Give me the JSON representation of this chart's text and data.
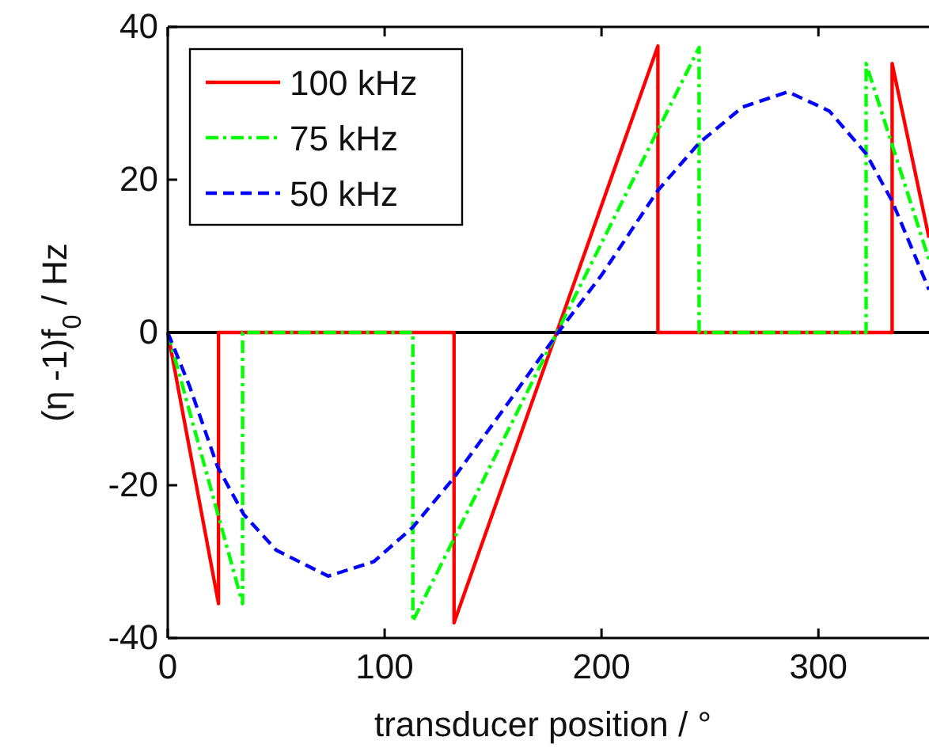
{
  "chart_data": {
    "type": "line",
    "xlabel": "transducer position / °",
    "ylabel": "(η -1)f$_{0}$ / Hz",
    "xlim": [
      0,
      351
    ],
    "xticks": [
      0,
      100,
      200,
      300
    ],
    "ylim": [
      -40,
      40
    ],
    "yticks": [
      -40,
      -20,
      0,
      20,
      40
    ],
    "grid": false,
    "legend": "top left",
    "ref_lines": [
      {
        "axis": "y",
        "value": 0,
        "color": "#000000"
      }
    ],
    "series": [
      {
        "name": "100 kHz",
        "color": "#ff0000",
        "line_style": "solid",
        "x": [
          0,
          23.4,
          23.4,
          132,
          132,
          226,
          226,
          334,
          334,
          351
        ],
        "values": [
          0,
          -35.5,
          0,
          0,
          -38,
          37.5,
          0,
          0,
          35.2,
          12.4
        ]
      },
      {
        "name": "75 kHz",
        "color": "#00ff00",
        "line_style": "dashdot",
        "x": [
          0,
          34.5,
          34.5,
          113,
          113,
          245,
          245,
          322,
          322,
          351
        ],
        "values": [
          0,
          -35.5,
          0,
          0,
          -37.8,
          37.3,
          0,
          0,
          35.2,
          9.5
        ]
      },
      {
        "name": "50 kHz",
        "color": "#0000ff",
        "line_style": "dashed",
        "x": [
          0,
          10,
          23,
          35,
          50,
          74,
          95,
          113,
          132,
          155,
          180,
          200,
          226,
          245,
          265,
          286,
          305,
          322,
          334,
          351
        ],
        "values": [
          0,
          -7,
          -17.6,
          -23.8,
          -28.5,
          -31.9,
          -30,
          -25.5,
          -19,
          -10,
          0,
          7.5,
          18.6,
          24.8,
          29.5,
          31.5,
          29,
          23.4,
          17.2,
          5.6
        ]
      }
    ]
  }
}
